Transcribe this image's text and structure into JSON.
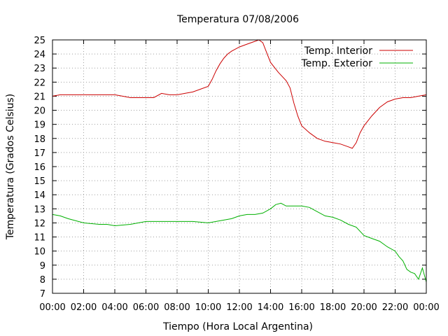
{
  "chart_data": {
    "type": "line",
    "title": "Temperatura 07/08/2006",
    "xlabel": "Tiempo (Hora Local Argentina)",
    "ylabel": "Temperatura (Grados Celsius)",
    "xlim": [
      "00:00",
      "24:00"
    ],
    "ylim": [
      7,
      25
    ],
    "x_ticks": [
      "00:00",
      "02:00",
      "04:00",
      "06:00",
      "08:00",
      "10:00",
      "12:00",
      "14:00",
      "16:00",
      "18:00",
      "20:00",
      "22:00",
      "00:00"
    ],
    "y_ticks": [
      7,
      8,
      9,
      10,
      11,
      12,
      13,
      14,
      15,
      16,
      17,
      18,
      19,
      20,
      21,
      22,
      23,
      24,
      25
    ],
    "grid": true,
    "legend_position": "top-right",
    "series": [
      {
        "name": "Temp. Interior",
        "color": "#cc0000",
        "x": [
          "00:00",
          "00:30",
          "01:00",
          "02:00",
          "03:00",
          "03:30",
          "04:00",
          "04:30",
          "05:00",
          "05:30",
          "06:00",
          "06:30",
          "07:00",
          "07:30",
          "08:00",
          "08:30",
          "09:00",
          "09:30",
          "10:00",
          "10:15",
          "10:30",
          "10:45",
          "11:00",
          "11:15",
          "11:30",
          "12:00",
          "12:30",
          "13:00",
          "13:15",
          "13:30",
          "13:45",
          "14:00",
          "14:30",
          "15:00",
          "15:15",
          "15:30",
          "15:45",
          "16:00",
          "16:30",
          "17:00",
          "17:30",
          "18:00",
          "18:30",
          "19:00",
          "19:15",
          "19:30",
          "19:45",
          "20:00",
          "20:30",
          "21:00",
          "21:30",
          "22:00",
          "22:30",
          "23:00",
          "23:30",
          "24:00"
        ],
        "values": [
          21.0,
          21.1,
          21.1,
          21.1,
          21.1,
          21.1,
          21.1,
          21.0,
          20.9,
          20.9,
          20.9,
          20.9,
          21.2,
          21.1,
          21.1,
          21.2,
          21.3,
          21.5,
          21.7,
          22.2,
          22.8,
          23.3,
          23.7,
          24.0,
          24.2,
          24.5,
          24.7,
          24.9,
          25.0,
          24.8,
          24.1,
          23.4,
          22.7,
          22.1,
          21.6,
          20.5,
          19.6,
          18.9,
          18.4,
          18.0,
          17.8,
          17.7,
          17.6,
          17.4,
          17.3,
          17.7,
          18.4,
          18.9,
          19.6,
          20.2,
          20.6,
          20.8,
          20.9,
          20.9,
          21.0,
          21.1
        ]
      },
      {
        "name": "Temp. Exterior",
        "color": "#00b000",
        "x": [
          "00:00",
          "00:30",
          "01:00",
          "02:00",
          "03:00",
          "03:30",
          "04:00",
          "05:00",
          "06:00",
          "07:00",
          "08:00",
          "09:00",
          "10:00",
          "10:30",
          "11:00",
          "11:30",
          "12:00",
          "12:30",
          "13:00",
          "13:30",
          "14:00",
          "14:20",
          "14:40",
          "15:00",
          "15:30",
          "16:00",
          "16:30",
          "17:00",
          "17:30",
          "18:00",
          "18:30",
          "19:00",
          "19:30",
          "20:00",
          "20:30",
          "21:00",
          "21:30",
          "22:00",
          "22:15",
          "22:30",
          "22:45",
          "23:00",
          "23:15",
          "23:30",
          "23:45",
          "24:00"
        ],
        "values": [
          12.6,
          12.5,
          12.3,
          12.0,
          11.9,
          11.9,
          11.8,
          11.9,
          12.1,
          12.1,
          12.1,
          12.1,
          12.0,
          12.1,
          12.2,
          12.3,
          12.5,
          12.6,
          12.6,
          12.7,
          13.0,
          13.3,
          13.4,
          13.2,
          13.2,
          13.2,
          13.1,
          12.8,
          12.5,
          12.4,
          12.2,
          11.9,
          11.7,
          11.1,
          10.9,
          10.7,
          10.3,
          10.0,
          9.6,
          9.3,
          8.7,
          8.5,
          8.4,
          8.0,
          8.8,
          7.8
        ]
      }
    ]
  }
}
